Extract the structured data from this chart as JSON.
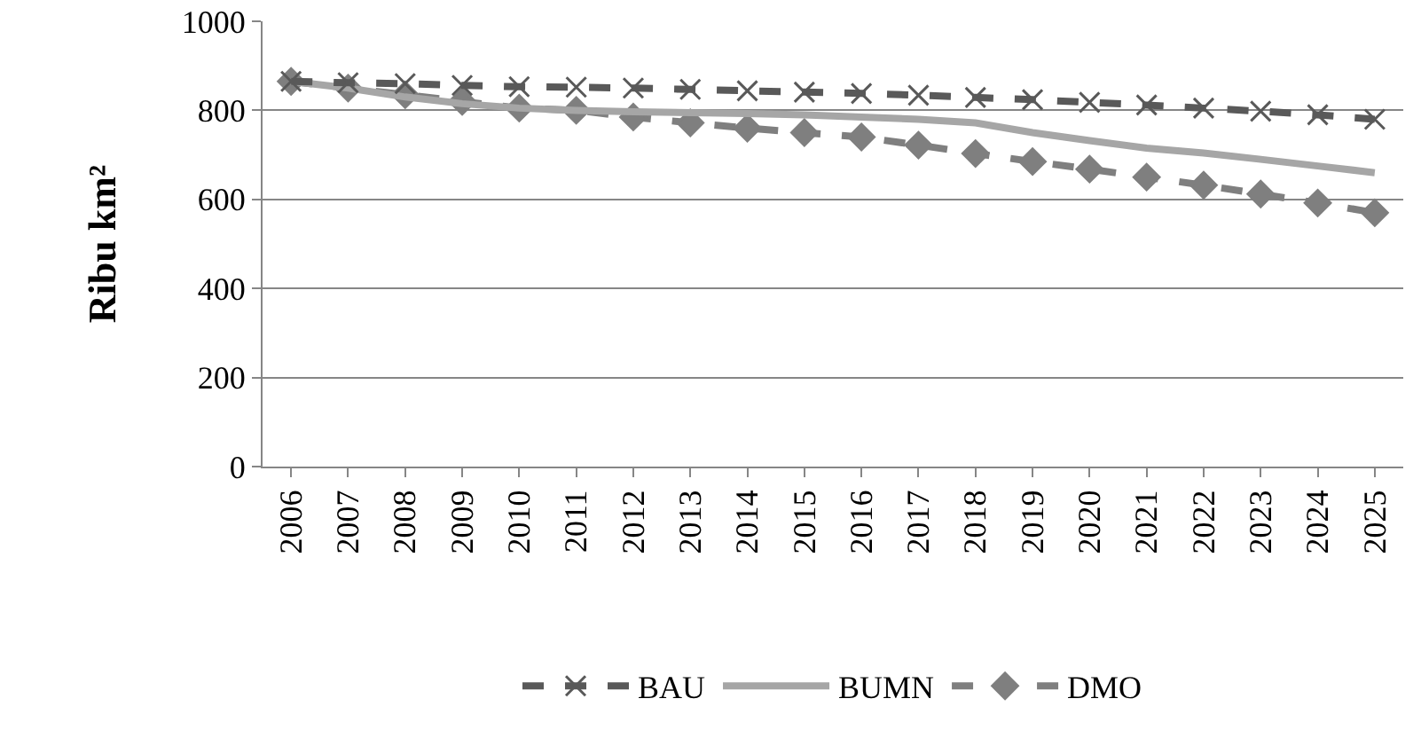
{
  "chart_data": {
    "type": "line",
    "ylabel": "Ribu km²",
    "categories": [
      "2006",
      "2007",
      "2008",
      "2009",
      "2010",
      "2011",
      "2012",
      "2013",
      "2014",
      "2015",
      "2016",
      "2017",
      "2018",
      "2019",
      "2020",
      "2021",
      "2022",
      "2023",
      "2024",
      "2025"
    ],
    "ylim": [
      0,
      1000
    ],
    "yticks": [
      0,
      200,
      400,
      600,
      800,
      1000
    ],
    "grid": "y",
    "legend": "bottom",
    "series": [
      {
        "name": "BAU",
        "color": "#595959",
        "marker": "cross",
        "line_style": "dashed",
        "values": [
          865,
          862,
          860,
          856,
          853,
          852,
          850,
          847,
          844,
          841,
          838,
          834,
          829,
          824,
          818,
          812,
          805,
          798,
          790,
          780
        ]
      },
      {
        "name": "BUMN",
        "color": "#a6a6a6",
        "marker": "none",
        "line_style": "solid",
        "values": [
          865,
          850,
          830,
          815,
          805,
          800,
          797,
          795,
          793,
          790,
          785,
          780,
          772,
          750,
          732,
          715,
          704,
          690,
          675,
          660
        ]
      },
      {
        "name": "DMO",
        "color": "#7f7f7f",
        "marker": "diamond",
        "line_style": "dashed",
        "values": [
          865,
          850,
          835,
          820,
          805,
          800,
          785,
          772,
          760,
          750,
          740,
          722,
          703,
          685,
          668,
          650,
          632,
          612,
          592,
          570
        ]
      }
    ]
  }
}
